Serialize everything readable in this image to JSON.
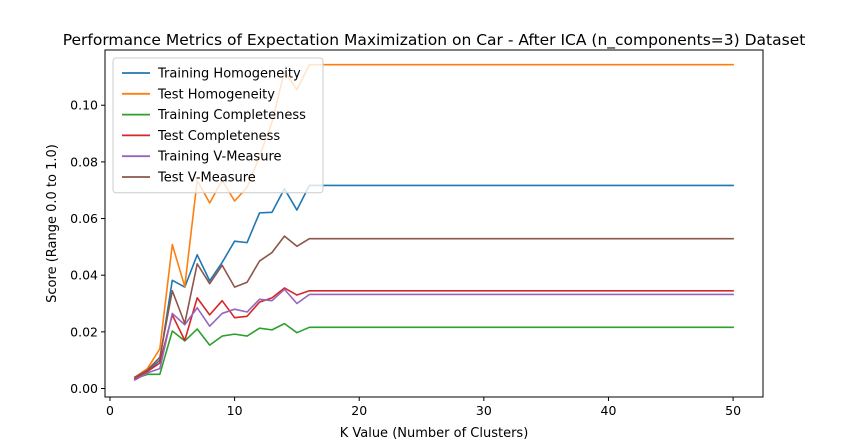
{
  "chart_data": {
    "type": "line",
    "title": "Performance Metrics of Expectation Maximization on Car - After ICA (n_components=3) Dataset",
    "xlabel": "K Value (Number of Clusters)",
    "ylabel": "Score (Range 0.0 to 1.0)",
    "xlim": [
      -0.4,
      52.4
    ],
    "ylim": [
      -0.003,
      0.1195
    ],
    "xticks": [
      0,
      10,
      20,
      30,
      40,
      50
    ],
    "yticks": [
      0.0,
      0.02,
      0.04,
      0.06,
      0.08,
      0.1
    ],
    "ytick_labels": [
      "0.00",
      "0.02",
      "0.04",
      "0.06",
      "0.08",
      "0.10"
    ],
    "legend_position": "top-left",
    "grid": false,
    "x": [
      2,
      3,
      4,
      5,
      6,
      7,
      8,
      9,
      10,
      11,
      12,
      13,
      14,
      15,
      16,
      17,
      18,
      19,
      20,
      21,
      22,
      23,
      24,
      25,
      26,
      27,
      28,
      29,
      30,
      31,
      32,
      33,
      34,
      35,
      36,
      37,
      38,
      39,
      40,
      41,
      42,
      43,
      44,
      45,
      46,
      47,
      48,
      49,
      50
    ],
    "series": [
      {
        "name": "Training Homogeneity",
        "color": "#1f77b4",
        "values": [
          0.004,
          0.006,
          0.01,
          0.0382,
          0.0358,
          0.0472,
          0.038,
          0.0445,
          0.052,
          0.0515,
          0.062,
          0.0622,
          0.0705,
          0.063,
          0.0717,
          0.0717,
          0.0717,
          0.0717,
          0.0717,
          0.0717,
          0.0717,
          0.0717,
          0.0717,
          0.0717,
          0.0717,
          0.0717,
          0.0717,
          0.0717,
          0.0717,
          0.0717,
          0.0717,
          0.0717,
          0.0717,
          0.0717,
          0.0717,
          0.0717,
          0.0717,
          0.0717,
          0.0717,
          0.0717,
          0.0717,
          0.0717,
          0.0717,
          0.0717,
          0.0717,
          0.0717,
          0.0717,
          0.0717,
          0.0717
        ]
      },
      {
        "name": "Test Homogeneity",
        "color": "#ff7f0e",
        "values": [
          0.004,
          0.007,
          0.014,
          0.0508,
          0.036,
          0.0735,
          0.0655,
          0.0735,
          0.0662,
          0.071,
          0.082,
          0.094,
          0.112,
          0.1055,
          0.1143,
          0.1143,
          0.1143,
          0.1143,
          0.1143,
          0.1143,
          0.1143,
          0.1143,
          0.1143,
          0.1143,
          0.1143,
          0.1143,
          0.1143,
          0.1143,
          0.1143,
          0.1143,
          0.1143,
          0.1143,
          0.1143,
          0.1143,
          0.1143,
          0.1143,
          0.1143,
          0.1143,
          0.1143,
          0.1143,
          0.1143,
          0.1143,
          0.1143,
          0.1143,
          0.1143,
          0.1143,
          0.1143,
          0.1143,
          0.1143
        ]
      },
      {
        "name": "Training Completeness",
        "color": "#2ca02c",
        "values": [
          0.0035,
          0.005,
          0.005,
          0.0203,
          0.0168,
          0.021,
          0.0153,
          0.0185,
          0.0192,
          0.0185,
          0.0213,
          0.0207,
          0.0229,
          0.0197,
          0.0216,
          0.0216,
          0.0216,
          0.0216,
          0.0216,
          0.0216,
          0.0216,
          0.0216,
          0.0216,
          0.0216,
          0.0216,
          0.0216,
          0.0216,
          0.0216,
          0.0216,
          0.0216,
          0.0216,
          0.0216,
          0.0216,
          0.0216,
          0.0216,
          0.0216,
          0.0216,
          0.0216,
          0.0216,
          0.0216,
          0.0216,
          0.0216,
          0.0216,
          0.0216,
          0.0216,
          0.0216,
          0.0216,
          0.0216,
          0.0216
        ]
      },
      {
        "name": "Test Completeness",
        "color": "#d62728",
        "values": [
          0.0035,
          0.006,
          0.009,
          0.026,
          0.017,
          0.032,
          0.026,
          0.031,
          0.025,
          0.0255,
          0.0305,
          0.032,
          0.0355,
          0.033,
          0.0345,
          0.0345,
          0.0345,
          0.0345,
          0.0345,
          0.0345,
          0.0345,
          0.0345,
          0.0345,
          0.0345,
          0.0345,
          0.0345,
          0.0345,
          0.0345,
          0.0345,
          0.0345,
          0.0345,
          0.0345,
          0.0345,
          0.0345,
          0.0345,
          0.0345,
          0.0345,
          0.0345,
          0.0345,
          0.0345,
          0.0345,
          0.0345,
          0.0345,
          0.0345,
          0.0345,
          0.0345,
          0.0345,
          0.0345,
          0.0345
        ]
      },
      {
        "name": "Training V-Measure",
        "color": "#9467bd",
        "values": [
          0.003,
          0.0055,
          0.007,
          0.0265,
          0.0225,
          0.0285,
          0.022,
          0.0265,
          0.028,
          0.027,
          0.0315,
          0.031,
          0.035,
          0.03,
          0.0332,
          0.0332,
          0.0332,
          0.0332,
          0.0332,
          0.0332,
          0.0332,
          0.0332,
          0.0332,
          0.0332,
          0.0332,
          0.0332,
          0.0332,
          0.0332,
          0.0332,
          0.0332,
          0.0332,
          0.0332,
          0.0332,
          0.0332,
          0.0332,
          0.0332,
          0.0332,
          0.0332,
          0.0332,
          0.0332,
          0.0332,
          0.0332,
          0.0332,
          0.0332,
          0.0332,
          0.0332,
          0.0332,
          0.0332,
          0.0332
        ]
      },
      {
        "name": "Test V-Measure",
        "color": "#8c564b",
        "values": [
          0.004,
          0.0065,
          0.011,
          0.0345,
          0.023,
          0.044,
          0.037,
          0.0435,
          0.0358,
          0.0375,
          0.045,
          0.048,
          0.0538,
          0.0502,
          0.0529,
          0.0529,
          0.0529,
          0.0529,
          0.0529,
          0.0529,
          0.0529,
          0.0529,
          0.0529,
          0.0529,
          0.0529,
          0.0529,
          0.0529,
          0.0529,
          0.0529,
          0.0529,
          0.0529,
          0.0529,
          0.0529,
          0.0529,
          0.0529,
          0.0529,
          0.0529,
          0.0529,
          0.0529,
          0.0529,
          0.0529,
          0.0529,
          0.0529,
          0.0529,
          0.0529,
          0.0529,
          0.0529,
          0.0529,
          0.0529
        ]
      }
    ]
  }
}
